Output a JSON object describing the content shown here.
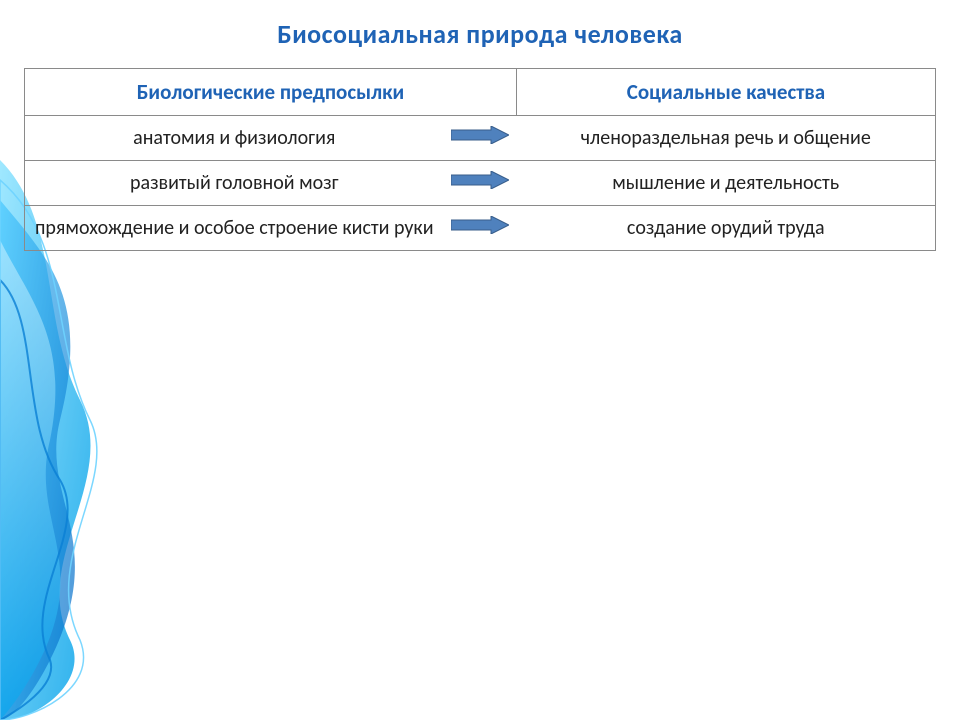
{
  "title": {
    "text": "Биосоциальная природа человека",
    "color": "#1f63b5",
    "fontsize": 26
  },
  "table": {
    "border_color": "#8a8a8a",
    "header_color": "#1f63b5",
    "header_fontsize": 21,
    "body_color": "#222222",
    "body_fontsize": 20,
    "headers": {
      "left": "Биологические предпосылки",
      "right": "Социальные качества"
    },
    "rows": [
      {
        "left": "анатомия и физиология",
        "right": "членораздельная речь и общение"
      },
      {
        "left": "развитый головной мозг",
        "right": "мышление и деятельность"
      },
      {
        "left": "прямохождение и особое строение кисти руки",
        "right": "создание орудий труда"
      }
    ]
  },
  "arrow": {
    "fill": "#4f81bd",
    "stroke": "#385d8a",
    "width": 58,
    "height": 18
  },
  "decor": {
    "colors": [
      "#00b8ff",
      "#2bb6ff",
      "#6ed3ff",
      "#0a7fd4"
    ]
  }
}
